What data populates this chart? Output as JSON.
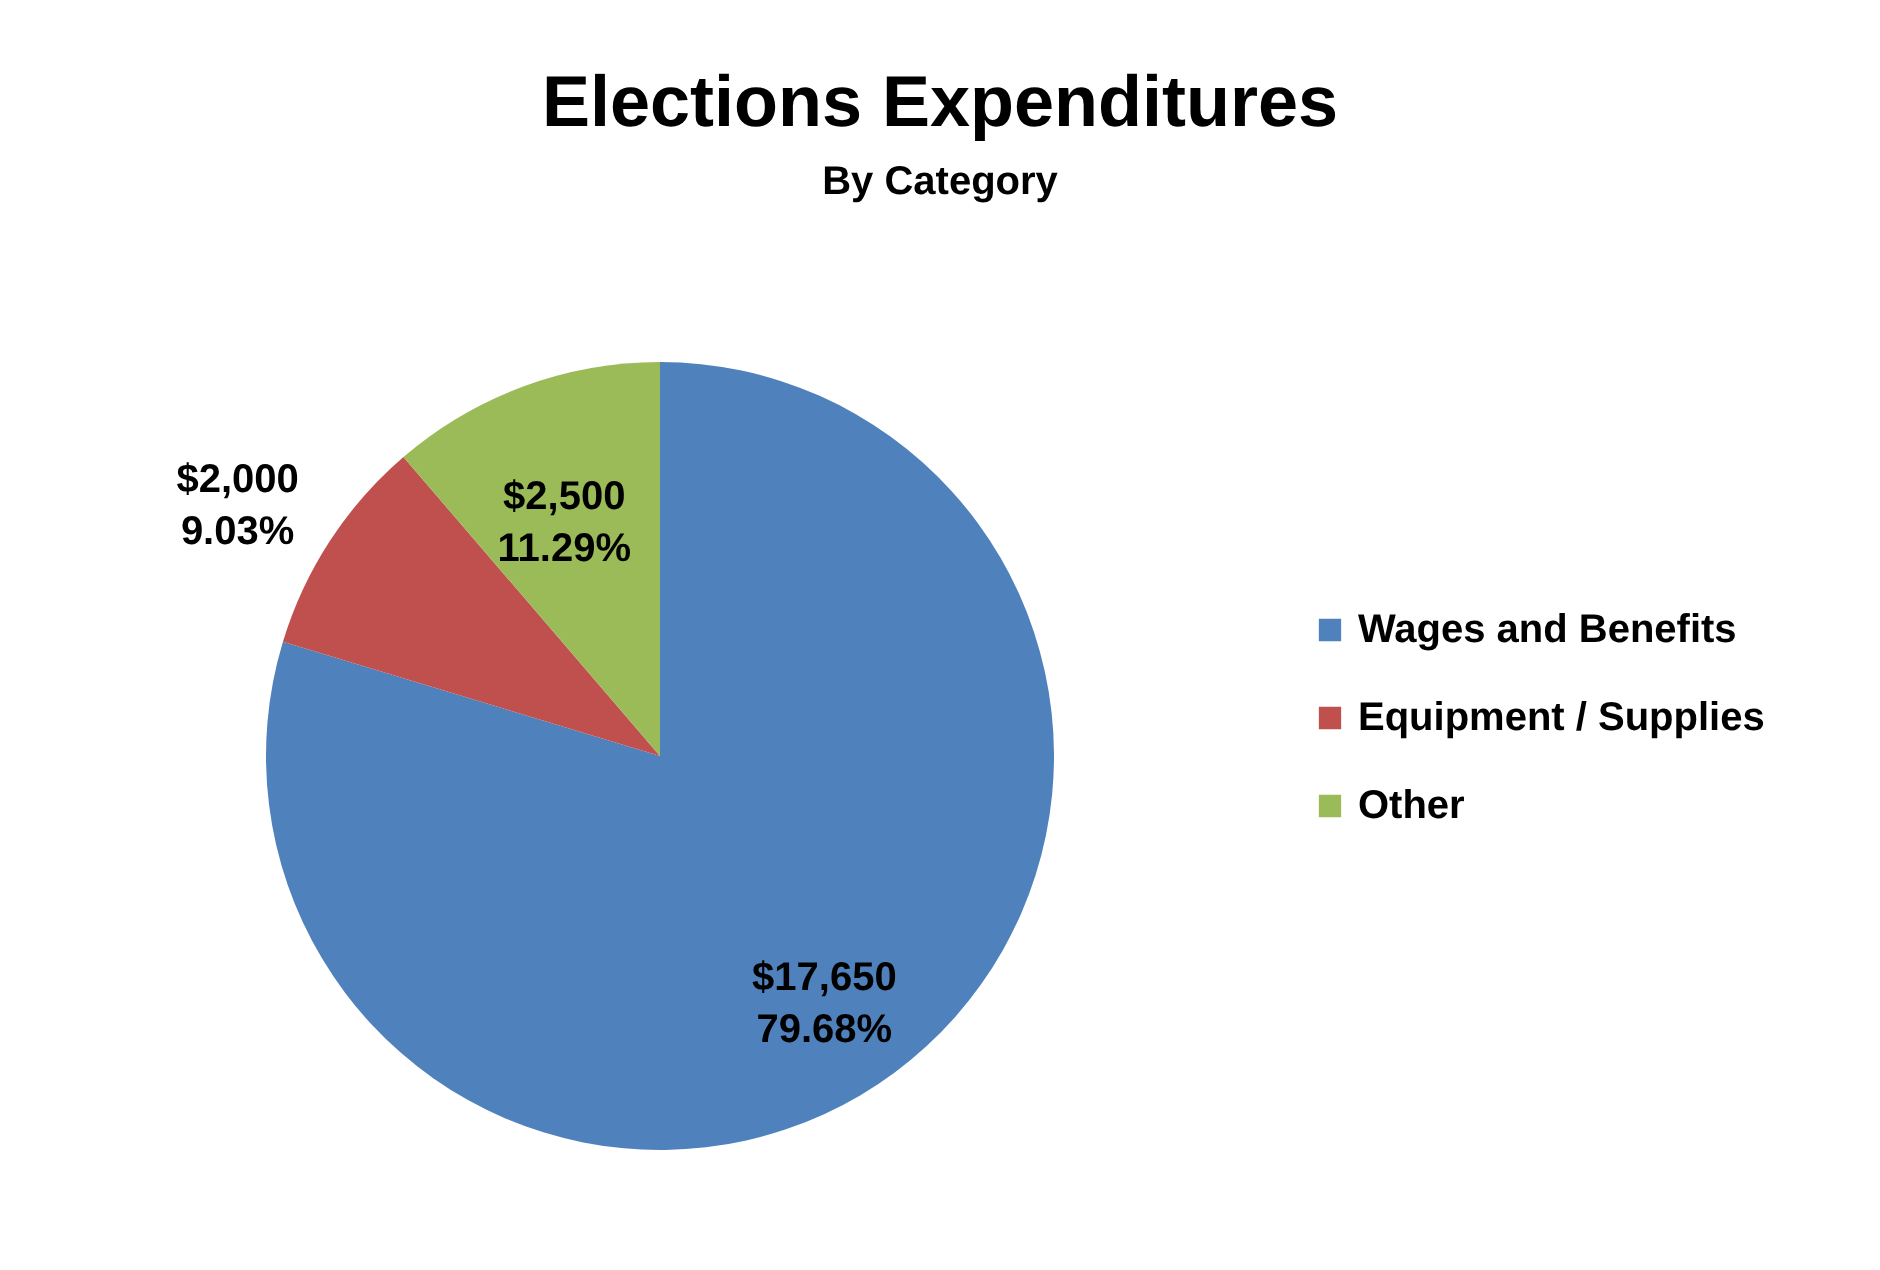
{
  "chart_data": {
    "type": "pie",
    "title": "Elections Expenditures",
    "subtitle": "By Category",
    "categories": [
      "Wages and Benefits",
      "Equipment / Supplies",
      "Other"
    ],
    "values": [
      17650,
      2000,
      2500
    ],
    "colors": [
      "#4f81bd",
      "#c0504d",
      "#9bbb59"
    ],
    "value_labels": [
      "$17,650\n79.68%",
      "$2,000\n9.03%",
      "$2,500\n11.29%"
    ],
    "legend": "right"
  }
}
